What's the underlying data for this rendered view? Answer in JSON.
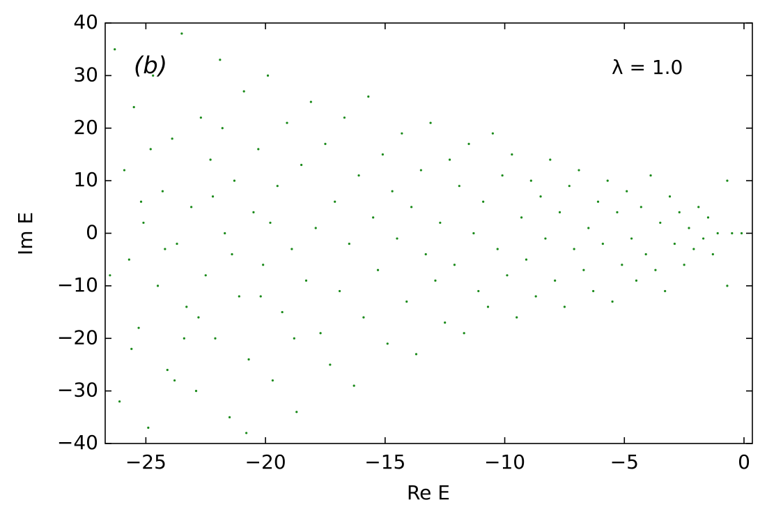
{
  "chart_data": {
    "type": "scatter",
    "xlabel": "Re E",
    "ylabel": "Im E",
    "annotations": [
      "(b)",
      "λ = 1.0"
    ],
    "color": "#1a8a1a",
    "xlim": [
      -26.7,
      0.35
    ],
    "ylim": [
      -40,
      40
    ],
    "xticks": [
      {
        "value": -25,
        "label": "−25"
      },
      {
        "value": -20,
        "label": "−20"
      },
      {
        "value": -15,
        "label": "−15"
      },
      {
        "value": -10,
        "label": "−10"
      },
      {
        "value": -5,
        "label": "−5"
      },
      0
    ],
    "yticks": [
      {
        "value": -40,
        "label": "−40"
      },
      {
        "value": -30,
        "label": "−30"
      },
      {
        "value": -20,
        "label": "−20"
      },
      {
        "value": -10,
        "label": "−10"
      },
      0,
      10,
      20,
      30,
      40
    ],
    "x": [
      -26.3,
      -26.1,
      -25.9,
      -25.7,
      -25.5,
      -25.3,
      -25.1,
      -24.9,
      -24.7,
      -24.5,
      -24.3,
      -24.1,
      -23.9,
      -23.7,
      -23.5,
      -23.3,
      -23.1,
      -22.9,
      -22.7,
      -22.5,
      -22.3,
      -22.1,
      -21.9,
      -21.7,
      -21.5,
      -21.3,
      -21.1,
      -20.9,
      -20.7,
      -20.5,
      -20.3,
      -20.1,
      -19.9,
      -19.7,
      -19.5,
      -19.3,
      -19.1,
      -18.9,
      -18.7,
      -18.5,
      -18.3,
      -18.1,
      -17.9,
      -17.7,
      -17.5,
      -17.3,
      -17.1,
      -16.9,
      -16.7,
      -16.5,
      -16.3,
      -16.1,
      -15.9,
      -15.7,
      -15.5,
      -15.3,
      -15.1,
      -14.9,
      -14.7,
      -14.5,
      -14.3,
      -14.1,
      -13.9,
      -13.7,
      -13.5,
      -13.3,
      -13.1,
      -12.9,
      -12.7,
      -12.5,
      -12.3,
      -12.1,
      -11.9,
      -11.7,
      -11.5,
      -11.3,
      -11.1,
      -10.9,
      -10.7,
      -10.5,
      -10.3,
      -10.1,
      -9.9,
      -9.7,
      -9.5,
      -9.3,
      -9.1,
      -8.9,
      -8.7,
      -8.5,
      -8.3,
      -8.1,
      -7.9,
      -7.7,
      -7.5,
      -7.3,
      -7.1,
      -6.9,
      -6.7,
      -6.5,
      -6.3,
      -6.1,
      -5.9,
      -5.7,
      -5.5,
      -5.3,
      -5.1,
      -4.9,
      -4.7,
      -4.5,
      -4.3,
      -4.1,
      -3.9,
      -3.7,
      -3.5,
      -3.3,
      -3.1,
      -2.9,
      -2.7,
      -2.5,
      -2.3,
      -2.1,
      -1.9,
      -1.7,
      -1.5,
      -1.3,
      -1.1,
      -0.7,
      -0.7,
      -0.5,
      -0.1,
      -25.6,
      -24.8,
      -23.8,
      -22.8,
      -21.8,
      -20.8,
      -19.8,
      -18.8,
      -24.2,
      -22.2,
      -20.2,
      -26.5,
      -25.2,
      -23.4,
      -21.4
    ],
    "values": [
      35,
      -32,
      12,
      -5,
      24,
      -18,
      2,
      -37,
      30,
      -10,
      8,
      -26,
      18,
      -2,
      38,
      -14,
      5,
      -30,
      22,
      -8,
      14,
      -20,
      33,
      0,
      -35,
      10,
      -12,
      27,
      -24,
      4,
      16,
      -6,
      30,
      -28,
      9,
      -15,
      21,
      -3,
      -34,
      13,
      -9,
      25,
      1,
      -19,
      17,
      -25,
      6,
      -11,
      22,
      -2,
      -29,
      11,
      -16,
      26,
      3,
      -7,
      15,
      -21,
      8,
      -1,
      19,
      -13,
      5,
      -23,
      12,
      -4,
      21,
      -9,
      2,
      -17,
      14,
      -6,
      9,
      -19,
      17,
      0,
      -11,
      6,
      -14,
      19,
      -3,
      11,
      -8,
      15,
      -16,
      3,
      -5,
      10,
      -12,
      7,
      -1,
      14,
      -9,
      4,
      -14,
      9,
      -3,
      12,
      -7,
      1,
      -11,
      6,
      -2,
      10,
      -13,
      4,
      -6,
      8,
      -1,
      -9,
      5,
      -4,
      11,
      -7,
      2,
      -11,
      7,
      -2,
      4,
      -6,
      1,
      -3,
      5,
      -1,
      3,
      -4,
      0,
      10,
      -10,
      0,
      0,
      -22,
      16,
      -28,
      -16,
      20,
      -38,
      2,
      -20,
      -3,
      7,
      -12,
      -8,
      6,
      -20,
      -4
    ]
  }
}
